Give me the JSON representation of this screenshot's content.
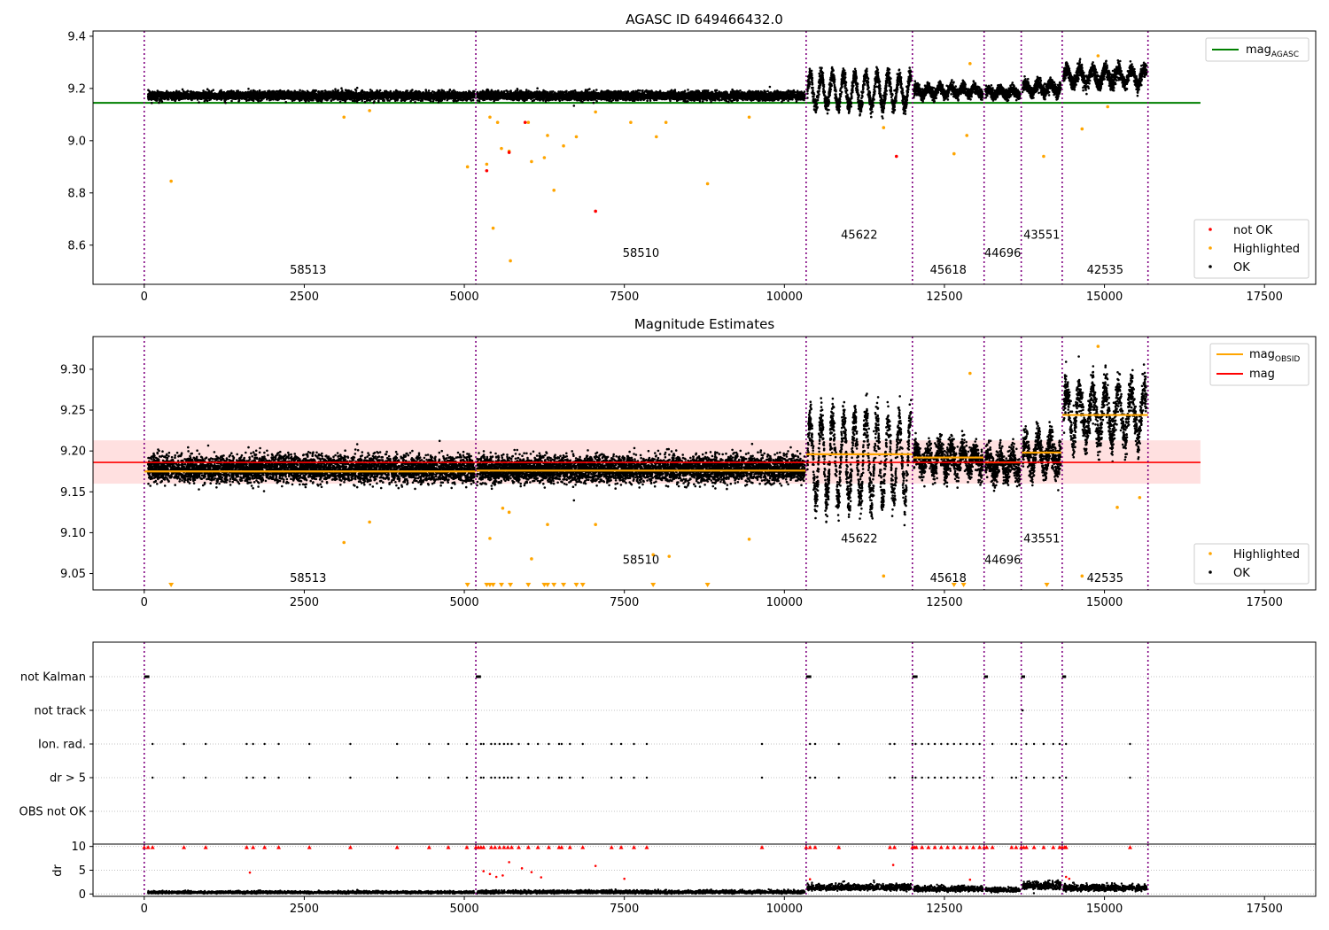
{
  "colors": {
    "ok": "#000000",
    "not_ok": "#ff0000",
    "highlighted": "#ffa500",
    "mag_agasc": "#008000",
    "mag_obsid": "#ffa500",
    "mag": "#ff0000",
    "band": "#ffdddd",
    "obs_line": "#800080",
    "grid": "#b0b0b0"
  },
  "chart_data": [
    {
      "id": "top",
      "type": "scatter",
      "title": "AGASC ID 649466432.0",
      "xlim": [
        -800,
        18300
      ],
      "ylim": [
        8.45,
        9.42
      ],
      "xticks": [
        0,
        2500,
        5000,
        7500,
        10000,
        12500,
        15000,
        17500
      ],
      "yticks": [
        8.6,
        8.8,
        9.0,
        9.2,
        9.4
      ],
      "ytick_labels": [
        "8.6",
        "8.8",
        "9.0",
        "9.2",
        "9.4"
      ],
      "legend_upper": [
        {
          "label": "mag",
          "sub": "AGASC",
          "kind": "line",
          "color": "#008000"
        }
      ],
      "legend_lower": [
        {
          "label": "not OK",
          "kind": "dot",
          "color": "#ff0000"
        },
        {
          "label": "Highlighted",
          "kind": "dot",
          "color": "#ffa500"
        },
        {
          "label": "OK",
          "kind": "dot",
          "color": "#000000"
        }
      ],
      "reference_lines": [
        {
          "name": "mag_AGASC",
          "y": 9.145,
          "x": [
            -800,
            16500
          ],
          "color": "#008000"
        }
      ],
      "observations": [
        {
          "obsid": "58513",
          "x0": 60,
          "x1": 5160,
          "mean": 9.172,
          "std": 0.008,
          "amp": 0.0,
          "label_x": 2560,
          "label_y": 8.49
        },
        {
          "obsid": "58510",
          "x0": 5200,
          "x1": 10320,
          "mean": 9.172,
          "std": 0.008,
          "amp": 0.0,
          "label_x": 7760,
          "label_y": 8.555
        },
        {
          "obsid": "45622",
          "x0": 10360,
          "x1": 11980,
          "mean": 9.19,
          "std": 0.015,
          "amp": 0.06,
          "label_x": 11170,
          "label_y": 8.625
        },
        {
          "obsid": "45618",
          "x0": 12020,
          "x1": 13100,
          "mean": 9.19,
          "std": 0.01,
          "amp": 0.015,
          "label_x": 12560,
          "label_y": 8.49
        },
        {
          "obsid": "44696",
          "x0": 13140,
          "x1": 13680,
          "mean": 9.185,
          "std": 0.01,
          "amp": 0.012,
          "label_x": 13410,
          "label_y": 8.555
        },
        {
          "obsid": "43551",
          "x0": 13720,
          "x1": 14320,
          "mean": 9.2,
          "std": 0.012,
          "amp": 0.02,
          "label_x": 14020,
          "label_y": 8.625
        },
        {
          "obsid": "42535",
          "x0": 14360,
          "x1": 15660,
          "mean": 9.245,
          "std": 0.014,
          "amp": 0.03,
          "label_x": 15010,
          "label_y": 8.49
        }
      ],
      "obs_boundaries": [
        0,
        5180,
        10340,
        12000,
        13120,
        13700,
        14340,
        15680
      ],
      "highlighted_points": [
        [
          420,
          8.845
        ],
        [
          3120,
          9.09
        ],
        [
          3520,
          9.115
        ],
        [
          5050,
          8.9
        ],
        [
          5350,
          8.91
        ],
        [
          5400,
          9.09
        ],
        [
          5450,
          8.665
        ],
        [
          5520,
          9.07
        ],
        [
          5580,
          8.97
        ],
        [
          5700,
          8.96
        ],
        [
          5720,
          8.54
        ],
        [
          6000,
          9.07
        ],
        [
          6050,
          8.92
        ],
        [
          6250,
          8.935
        ],
        [
          6300,
          9.02
        ],
        [
          6400,
          8.81
        ],
        [
          6550,
          8.98
        ],
        [
          6750,
          9.015
        ],
        [
          7050,
          9.11
        ],
        [
          7600,
          9.07
        ],
        [
          8000,
          9.015
        ],
        [
          8150,
          9.07
        ],
        [
          8800,
          8.835
        ],
        [
          9450,
          9.09
        ],
        [
          11550,
          9.05
        ],
        [
          12650,
          8.95
        ],
        [
          12850,
          9.02
        ],
        [
          12900,
          9.295
        ],
        [
          14050,
          8.94
        ],
        [
          14650,
          9.045
        ],
        [
          14900,
          9.325
        ],
        [
          15050,
          9.13
        ]
      ],
      "not_ok_points": [
        [
          5350,
          8.885
        ],
        [
          5700,
          8.955
        ],
        [
          5950,
          9.07
        ],
        [
          7050,
          8.73
        ],
        [
          11750,
          8.94
        ]
      ]
    },
    {
      "id": "middle",
      "type": "scatter",
      "title": "Magnitude Estimates",
      "xlim": [
        -800,
        18300
      ],
      "ylim": [
        9.03,
        9.34
      ],
      "xticks": [
        0,
        2500,
        5000,
        7500,
        10000,
        12500,
        15000,
        17500
      ],
      "yticks": [
        9.05,
        9.1,
        9.15,
        9.2,
        9.25,
        9.3
      ],
      "ytick_labels": [
        "9.05",
        "9.10",
        "9.15",
        "9.20",
        "9.25",
        "9.30"
      ],
      "legend_upper": [
        {
          "label": "mag",
          "sub": "OBSID",
          "kind": "line",
          "color": "#ffa500"
        },
        {
          "label": "mag",
          "kind": "line",
          "color": "#ff0000"
        }
      ],
      "legend_lower": [
        {
          "label": "Highlighted",
          "kind": "dot",
          "color": "#ffa500"
        },
        {
          "label": "OK",
          "kind": "dot",
          "color": "#000000"
        }
      ],
      "mag": 9.186,
      "mag_band": [
        9.16,
        9.213
      ],
      "mag_x": [
        -800,
        16500
      ],
      "obsid_means": [
        {
          "x0": 0,
          "x1": 5180,
          "y": 9.175
        },
        {
          "x0": 5180,
          "x1": 10340,
          "y": 9.176
        },
        {
          "x0": 10340,
          "x1": 12000,
          "y": 9.196
        },
        {
          "x0": 12000,
          "x1": 13120,
          "y": 9.192
        },
        {
          "x0": 13120,
          "x1": 13700,
          "y": 9.186
        },
        {
          "x0": 13700,
          "x1": 14340,
          "y": 9.198
        },
        {
          "x0": 14340,
          "x1": 15680,
          "y": 9.244
        }
      ],
      "observations": [
        {
          "obsid": "58513",
          "x0": 60,
          "x1": 5160,
          "mean": 9.178,
          "std": 0.008,
          "amp": 0.0,
          "label_x": 2560,
          "label_y": 9.04
        },
        {
          "obsid": "58510",
          "x0": 5200,
          "x1": 10320,
          "mean": 9.178,
          "std": 0.008,
          "amp": 0.0,
          "label_x": 7760,
          "label_y": 9.062
        },
        {
          "obsid": "45622",
          "x0": 10360,
          "x1": 11980,
          "mean": 9.19,
          "std": 0.012,
          "amp": 0.05,
          "label_x": 11170,
          "label_y": 9.088
        },
        {
          "obsid": "45618",
          "x0": 12020,
          "x1": 13100,
          "mean": 9.19,
          "std": 0.009,
          "amp": 0.012,
          "label_x": 12560,
          "label_y": 9.04
        },
        {
          "obsid": "44696",
          "x0": 13140,
          "x1": 13680,
          "mean": 9.183,
          "std": 0.009,
          "amp": 0.01,
          "label_x": 13410,
          "label_y": 9.062
        },
        {
          "obsid": "43551",
          "x0": 13720,
          "x1": 14320,
          "mean": 9.195,
          "std": 0.01,
          "amp": 0.018,
          "label_x": 14020,
          "label_y": 9.088
        },
        {
          "obsid": "42535",
          "x0": 14360,
          "x1": 15660,
          "mean": 9.245,
          "std": 0.012,
          "amp": 0.03,
          "label_x": 15010,
          "label_y": 9.04
        }
      ],
      "obs_boundaries": [
        0,
        5180,
        10340,
        12000,
        13120,
        13700,
        14340,
        15680
      ],
      "highlighted_points": [
        [
          3120,
          9.088
        ],
        [
          3520,
          9.113
        ],
        [
          5400,
          9.093
        ],
        [
          5600,
          9.13
        ],
        [
          5700,
          9.125
        ],
        [
          6050,
          9.068
        ],
        [
          6300,
          9.11
        ],
        [
          7050,
          9.11
        ],
        [
          7950,
          9.073
        ],
        [
          8200,
          9.071
        ],
        [
          9450,
          9.092
        ],
        [
          11550,
          9.047
        ],
        [
          12900,
          9.295
        ],
        [
          14650,
          9.047
        ],
        [
          14900,
          9.328
        ],
        [
          15200,
          9.131
        ],
        [
          15550,
          9.143
        ]
      ],
      "clipped_markers": [
        420,
        5050,
        5350,
        5400,
        5450,
        5580,
        5720,
        6000,
        6250,
        6300,
        6400,
        6550,
        6750,
        6850,
        7950,
        8800,
        12650,
        12800,
        14100
      ]
    },
    {
      "id": "flags",
      "type": "scatter",
      "xlim": [
        -800,
        18300
      ],
      "categories": [
        "not Kalman",
        "not track",
        "Ion. rad.",
        "dr > 5",
        "OBS not OK"
      ],
      "obs_boundaries": [
        0,
        5180,
        10340,
        12000,
        13120,
        13700,
        14340,
        15680
      ],
      "not_kalman": [
        [
          0,
          80
        ],
        [
          5180,
          5260
        ],
        [
          10340,
          10420
        ],
        [
          12000,
          12080
        ],
        [
          13120,
          13180
        ],
        [
          13700,
          13760
        ],
        [
          14340,
          14400
        ]
      ],
      "not_track": [
        13720
      ],
      "ion_rad": [
        130,
        620,
        960,
        1600,
        1700,
        1880,
        2100,
        2580,
        3220,
        3950,
        4450,
        4750,
        5040,
        5260,
        5300,
        5420,
        5480,
        5550,
        5620,
        5680,
        5740,
        5850,
        6000,
        6150,
        6320,
        6480,
        6520,
        6650,
        6850,
        7300,
        7450,
        7650,
        7850,
        9650,
        10400,
        10480,
        10850,
        11650,
        11720,
        12000,
        12050,
        12150,
        12250,
        12350,
        12450,
        12550,
        12650,
        12750,
        12850,
        12950,
        13050,
        13250,
        13550,
        13620,
        13780,
        13900,
        14050,
        14200,
        14300,
        14400,
        15400
      ],
      "dr5": [
        130,
        620,
        960,
        1600,
        1700,
        1880,
        2100,
        2580,
        3220,
        3950,
        4450,
        4750,
        5040,
        5260,
        5300,
        5420,
        5480,
        5550,
        5620,
        5680,
        5740,
        5850,
        6000,
        6150,
        6320,
        6480,
        6520,
        6650,
        6850,
        7300,
        7450,
        7650,
        7850,
        9650,
        10400,
        10480,
        10850,
        11650,
        11720,
        12000,
        12050,
        12150,
        12250,
        12350,
        12450,
        12550,
        12650,
        12750,
        12850,
        12950,
        13050,
        13250,
        13550,
        13620,
        13780,
        13900,
        14050,
        14200,
        14300,
        14400,
        15400
      ]
    },
    {
      "id": "dr",
      "type": "scatter",
      "ylabel": "dr",
      "xlim": [
        -800,
        18300
      ],
      "ylim": [
        -0.5,
        10.5
      ],
      "xticks": [
        0,
        2500,
        5000,
        7500,
        10000,
        12500,
        15000,
        17500
      ],
      "yticks": [
        0,
        5,
        10
      ],
      "ytick_labels": [
        "0",
        "5",
        "10"
      ],
      "obs_boundaries": [
        0,
        5180,
        10340,
        12000,
        13120,
        13700,
        14340,
        15680
      ],
      "segments": [
        {
          "x0": 60,
          "x1": 5160,
          "mean": 0.3,
          "std": 0.15
        },
        {
          "x0": 5200,
          "x1": 10320,
          "mean": 0.35,
          "std": 0.2
        },
        {
          "x0": 10360,
          "x1": 11980,
          "mean": 1.3,
          "std": 0.4
        },
        {
          "x0": 12020,
          "x1": 13100,
          "mean": 1.0,
          "std": 0.35
        },
        {
          "x0": 13140,
          "x1": 13680,
          "mean": 0.8,
          "std": 0.3
        },
        {
          "x0": 13720,
          "x1": 14320,
          "mean": 1.6,
          "std": 0.5
        },
        {
          "x0": 14360,
          "x1": 15660,
          "mean": 1.2,
          "std": 0.4
        }
      ],
      "red_points": [
        [
          1650,
          4.5
        ],
        [
          5300,
          4.8
        ],
        [
          5400,
          4.2
        ],
        [
          5500,
          3.6
        ],
        [
          5600,
          3.9
        ],
        [
          5700,
          6.7
        ],
        [
          5900,
          5.4
        ],
        [
          6050,
          4.6
        ],
        [
          6200,
          3.5
        ],
        [
          7050,
          5.9
        ],
        [
          7500,
          3.2
        ],
        [
          10400,
          3.1
        ],
        [
          11700,
          6.1
        ],
        [
          12900,
          3.0
        ],
        [
          14400,
          3.6
        ],
        [
          14450,
          3.2
        ]
      ],
      "red_triangles": [
        0,
        60,
        130,
        620,
        960,
        1600,
        1700,
        1880,
        2100,
        2580,
        3220,
        3950,
        4450,
        4750,
        5040,
        5180,
        5220,
        5260,
        5300,
        5420,
        5480,
        5550,
        5620,
        5680,
        5740,
        5850,
        6000,
        6150,
        6320,
        6480,
        6520,
        6650,
        6850,
        7300,
        7450,
        7650,
        7850,
        9650,
        10340,
        10400,
        10480,
        10850,
        11650,
        11720,
        12000,
        12030,
        12060,
        12150,
        12250,
        12350,
        12450,
        12550,
        12650,
        12750,
        12850,
        12950,
        13050,
        13120,
        13160,
        13250,
        13550,
        13620,
        13700,
        13740,
        13780,
        13900,
        14050,
        14200,
        14300,
        14340,
        14380,
        14400,
        15400
      ]
    }
  ]
}
